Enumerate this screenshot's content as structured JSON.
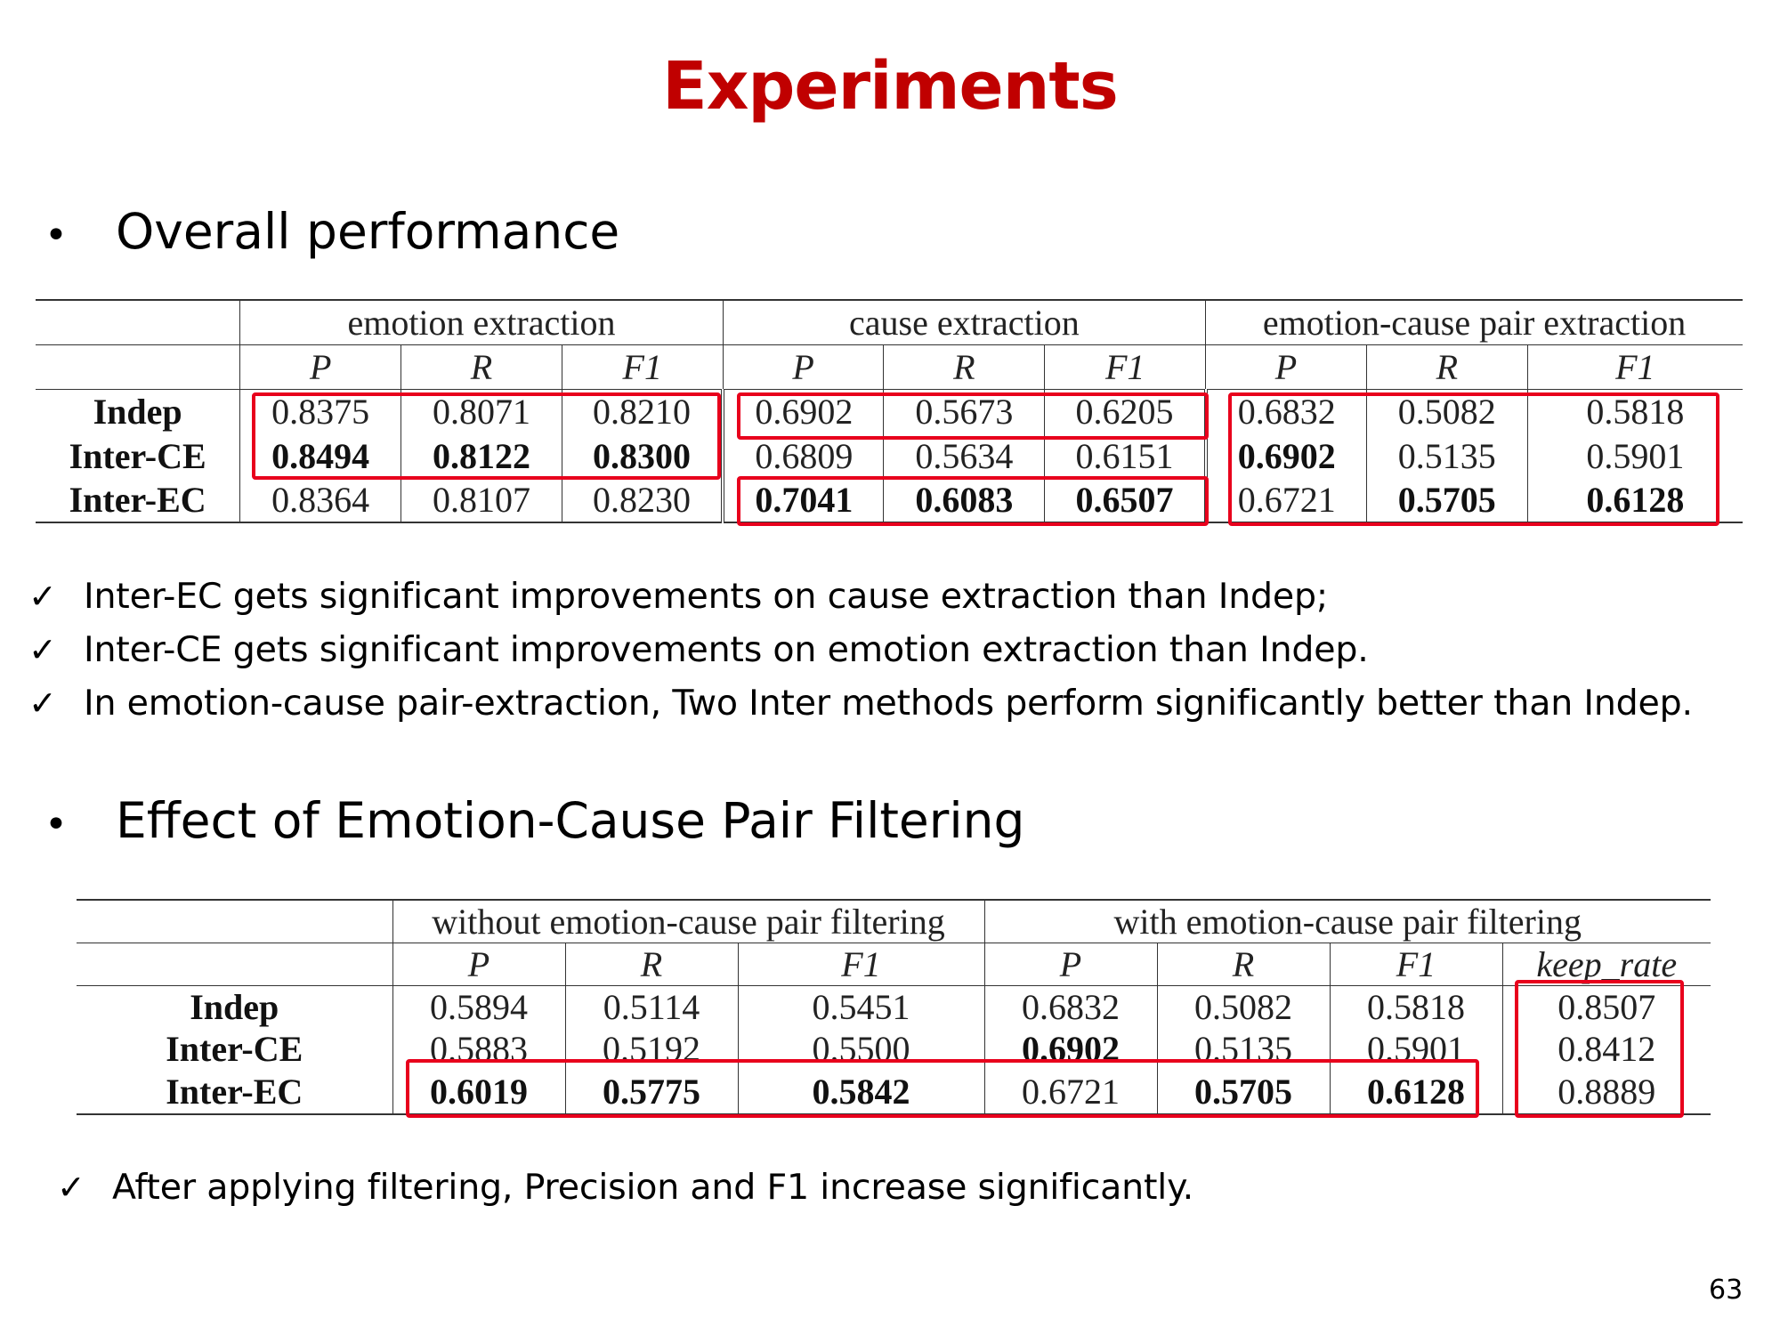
{
  "slide": {
    "title": "Experiments",
    "page_number": "63"
  },
  "section1": {
    "bullet": "•",
    "heading": "Overall performance",
    "table": {
      "groups": [
        "emotion extraction",
        "cause extraction",
        "emotion-cause pair extraction"
      ],
      "subheaders": [
        "P",
        "R",
        "F1",
        "P",
        "R",
        "F1",
        "P",
        "R",
        "F1"
      ],
      "rows": [
        {
          "label": "Indep",
          "values": [
            "0.8375",
            "0.8071",
            "0.8210",
            "0.6902",
            "0.5673",
            "0.6205",
            "0.6832",
            "0.5082",
            "0.5818"
          ]
        },
        {
          "label": "Inter-CE",
          "values": [
            "0.8494",
            "0.8122",
            "0.8300",
            "0.6809",
            "0.5634",
            "0.6151",
            "0.6902",
            "0.5135",
            "0.5901"
          ]
        },
        {
          "label": "Inter-EC",
          "values": [
            "0.8364",
            "0.8107",
            "0.8230",
            "0.7041",
            "0.6083",
            "0.6507",
            "0.6721",
            "0.5705",
            "0.6128"
          ]
        }
      ]
    },
    "checks": [
      "Inter-EC gets significant improvements on cause extraction than Indep;",
      "Inter-CE gets significant improvements on emotion extraction than Indep.",
      "In emotion-cause pair-extraction, Two Inter methods perform significantly better than Indep."
    ],
    "check_symbol": "✓"
  },
  "section2": {
    "bullet": "•",
    "heading": "Effect of Emotion-Cause Pair Filtering",
    "table": {
      "groups": [
        "without emotion-cause pair filtering",
        "with emotion-cause pair filtering"
      ],
      "subheaders": [
        "P",
        "R",
        "F1",
        "P",
        "R",
        "F1",
        "keep_rate"
      ],
      "rows": [
        {
          "label": "Indep",
          "values": [
            "0.5894",
            "0.5114",
            "0.5451",
            "0.6832",
            "0.5082",
            "0.5818",
            "0.8507"
          ]
        },
        {
          "label": "Inter-CE",
          "values": [
            "0.5883",
            "0.5192",
            "0.5500",
            "0.6902",
            "0.5135",
            "0.5901",
            "0.8412"
          ]
        },
        {
          "label": "Inter-EC",
          "values": [
            "0.6019",
            "0.5775",
            "0.5842",
            "0.6721",
            "0.5705",
            "0.6128",
            "0.8889"
          ]
        }
      ]
    },
    "checks": [
      "After applying filtering, Precision and F1 increase significantly."
    ],
    "check_symbol": "✓"
  },
  "colors": {
    "title": "#c00000",
    "highlight_box": "#e8001c"
  }
}
